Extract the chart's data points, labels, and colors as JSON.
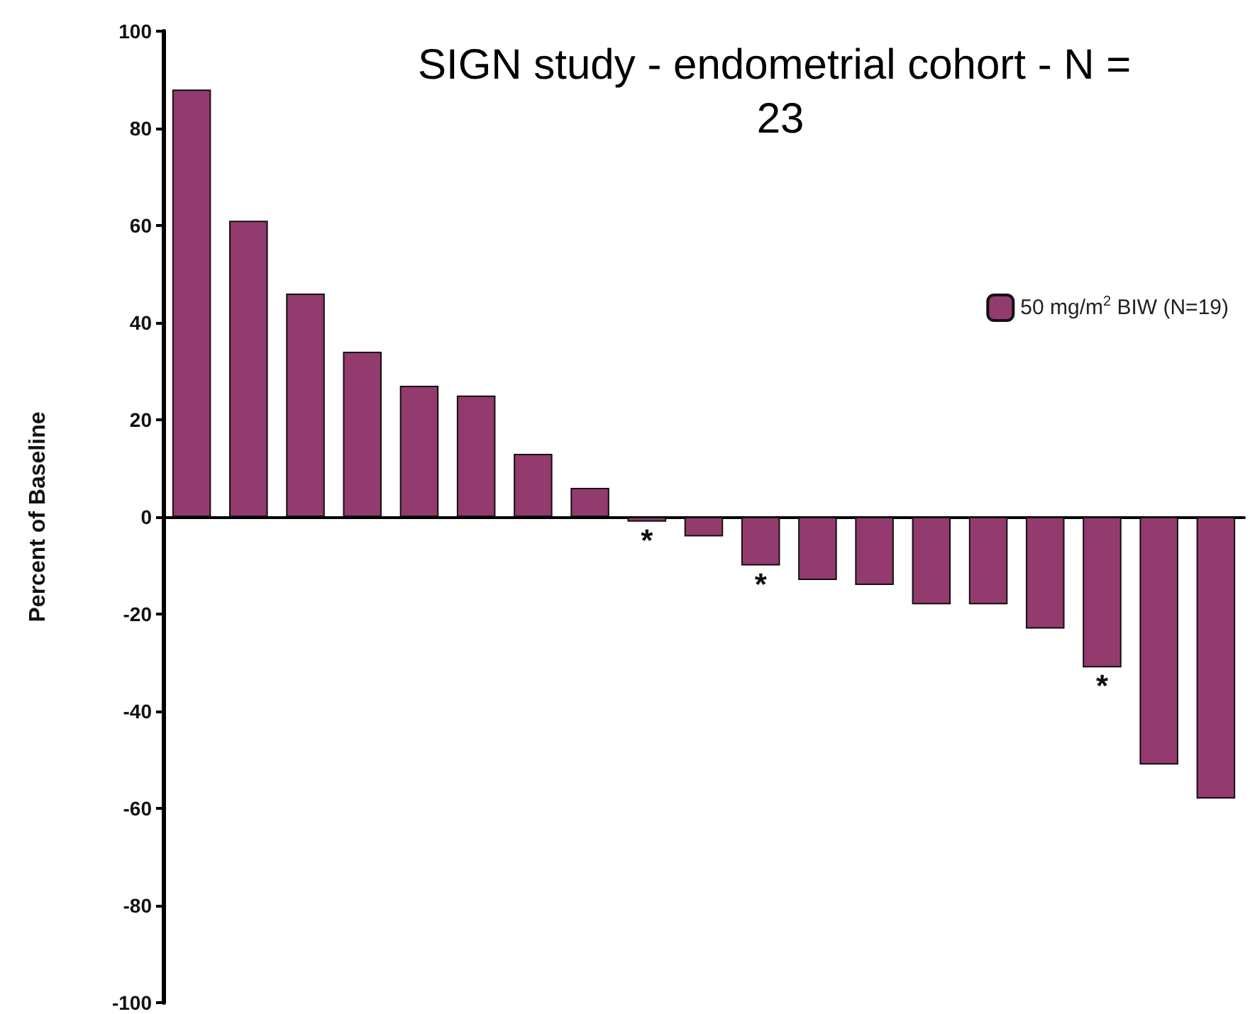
{
  "chart_data": {
    "type": "bar",
    "title": "SIGN study - endometrial cohort - N = 23",
    "ylabel": "Percent of Baseline",
    "categories": [
      null,
      null,
      null,
      null,
      null,
      null,
      null,
      null,
      null,
      null,
      null,
      null,
      null,
      null,
      null,
      null,
      null,
      null,
      null
    ],
    "series": [
      {
        "name": "50 mg/m$^{2}$ BIW (N=19)",
        "color": "#933a6e",
        "values": [
          88,
          61,
          46,
          34,
          27,
          25,
          13,
          6,
          -1,
          -4,
          -10,
          -13,
          -14,
          -18,
          -18,
          -23,
          -31,
          -51,
          -58
        ],
        "value_labels": [
          null,
          null,
          null,
          null,
          null,
          null,
          null,
          null,
          "*",
          null,
          "*",
          null,
          null,
          null,
          null,
          null,
          "*",
          null,
          null
        ]
      }
    ],
    "ylim": [
      -100,
      100
    ],
    "yticks": [
      -100,
      -80,
      -60,
      -40,
      -20,
      0,
      20,
      40,
      60,
      80,
      100
    ],
    "tick_labels": "y",
    "legend": "top right"
  }
}
